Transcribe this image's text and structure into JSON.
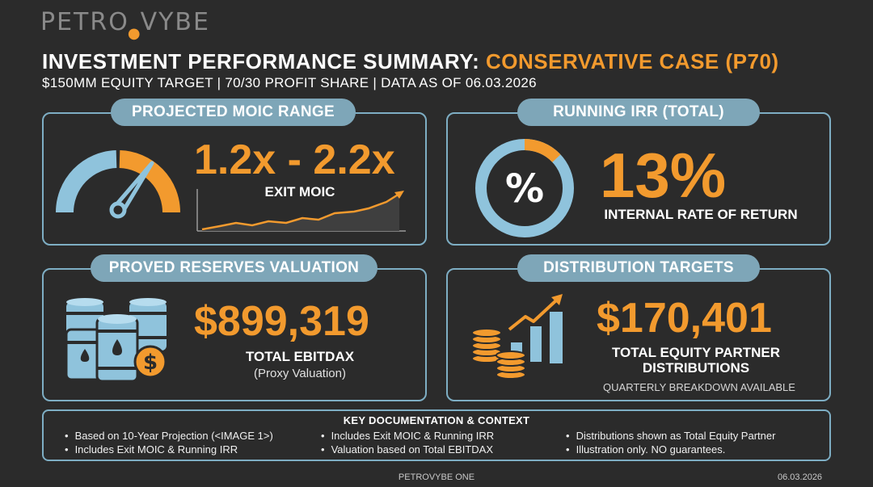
{
  "brand": {
    "logo_prefix": "PETRO",
    "logo_suffix": "VYBE"
  },
  "header": {
    "title_main": "INVESTMENT PERFORMANCE SUMMARY: ",
    "title_accent": "CONSERVATIVE CASE (P70)",
    "subtitle": "$150MM EQUITY TARGET | 70/30 PROFIT SHARE | DATA AS OF 06.03.2026"
  },
  "moic": {
    "pill": "PROJECTED MOIC RANGE",
    "value": "1.2x - 2.2x",
    "caption": "EXIT MOIC"
  },
  "irr": {
    "pill": "RUNNING IRR (TOTAL)",
    "value": "13%",
    "caption": "INTERNAL RATE OF RETURN",
    "icon_symbol": "%",
    "ring_fraction": 0.13
  },
  "reserves": {
    "pill": "PROVED RESERVES VALUATION",
    "value": "$899,319",
    "caption": "TOTAL EBITDAX",
    "note": "(Proxy Valuation)",
    "coin_symbol": "$"
  },
  "distributions": {
    "pill": "DISTRIBUTION TARGETS",
    "value": "$170,401",
    "caption_line1": "TOTAL EQUITY PARTNER",
    "caption_line2": "DISTRIBUTIONS",
    "note": "QUARTERLY BREAKDOWN AVAILABLE"
  },
  "context": {
    "heading": "KEY DOCUMENTATION & CONTEXT",
    "col1": [
      "Based on 10-Year Projection (<IMAGE 1>)",
      "Includes Exit MOIC & Running IRR"
    ],
    "col2": [
      "Includes Exit MOIC & Running IRR",
      "Valuation based on Total EBITDAX"
    ],
    "col3": [
      "Distributions shown as Total Equity Partner",
      "Illustration only. NO guarantees."
    ]
  },
  "footer": {
    "center": "PETROVYBE ONE",
    "date": "06.03.2026"
  },
  "colors": {
    "background": "#2b2b2b",
    "accent_orange": "#f29a2e",
    "accent_blue": "#8fc3dc",
    "pill_blue": "#7ea6b8",
    "panel_border": "#7eaec4"
  },
  "icons": {
    "moic": "speedometer-gauge-icon",
    "moic_chart": "line-trend-chart-icon",
    "irr": "percent-ring-icon",
    "reserves": "oil-barrels-icon",
    "distributions": "coins-growth-chart-icon"
  }
}
